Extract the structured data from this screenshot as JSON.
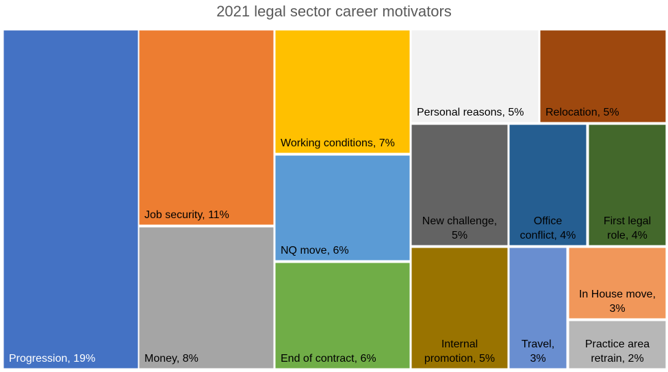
{
  "chart_data": {
    "type": "treemap",
    "title": "2021 legal sector career motivators",
    "series": [
      {
        "name": "Progression",
        "value": 19,
        "label": [
          "Progression, 19%"
        ],
        "color": "#4472c4",
        "text_color": "#ffffff",
        "align": "left"
      },
      {
        "name": "Job security",
        "value": 11,
        "label": [
          "Job security, 11%"
        ],
        "color": "#ed7d31",
        "text_color": "#000000",
        "align": "left"
      },
      {
        "name": "Money",
        "value": 8,
        "label": [
          "Money, 8%"
        ],
        "color": "#a5a5a5",
        "text_color": "#000000",
        "align": "left"
      },
      {
        "name": "Working conditions",
        "value": 7,
        "label": [
          "Working conditions, 7%"
        ],
        "color": "#ffc000",
        "text_color": "#000000",
        "align": "left"
      },
      {
        "name": "NQ move",
        "value": 6,
        "label": [
          "NQ move, 6%"
        ],
        "color": "#5b9bd5",
        "text_color": "#000000",
        "align": "left"
      },
      {
        "name": "End of contract",
        "value": 6,
        "label": [
          "End of contract, 6%"
        ],
        "color": "#70ad47",
        "text_color": "#000000",
        "align": "left"
      },
      {
        "name": "Personal reasons",
        "value": 5,
        "label": [
          "Personal reasons, 5%"
        ],
        "color": "#f2f2f2",
        "text_color": "#000000",
        "align": "left"
      },
      {
        "name": "Relocation",
        "value": 5,
        "label": [
          "Relocation, 5%"
        ],
        "color": "#9e480e",
        "text_color": "#000000",
        "align": "left"
      },
      {
        "name": "New challenge",
        "value": 5,
        "label": [
          "New challenge,",
          "5%"
        ],
        "color": "#636363",
        "text_color": "#000000",
        "align": "center"
      },
      {
        "name": "Office conflict",
        "value": 4,
        "label": [
          "Office",
          "conflict, 4%"
        ],
        "color": "#255e91",
        "text_color": "#000000",
        "align": "center"
      },
      {
        "name": "First legal role",
        "value": 4,
        "label": [
          "First legal",
          "role, 4%"
        ],
        "color": "#43682b",
        "text_color": "#000000",
        "align": "center"
      },
      {
        "name": "Internal promotion",
        "value": 5,
        "label": [
          "Internal",
          "promotion, 5%"
        ],
        "color": "#997300",
        "text_color": "#000000",
        "align": "center"
      },
      {
        "name": "Travel",
        "value": 3,
        "label": [
          "Travel,",
          "3%"
        ],
        "color": "#698ed0",
        "text_color": "#000000",
        "align": "center"
      },
      {
        "name": "In House move",
        "value": 3,
        "label": [
          "In House move,",
          "3%"
        ],
        "color": "#f1975a",
        "text_color": "#000000",
        "align": "center"
      },
      {
        "name": "Practice area retrain",
        "value": 2,
        "label": [
          "Practice area",
          "retrain, 2%"
        ],
        "color": "#b7b7b7",
        "text_color": "#000000",
        "align": "center"
      }
    ]
  }
}
